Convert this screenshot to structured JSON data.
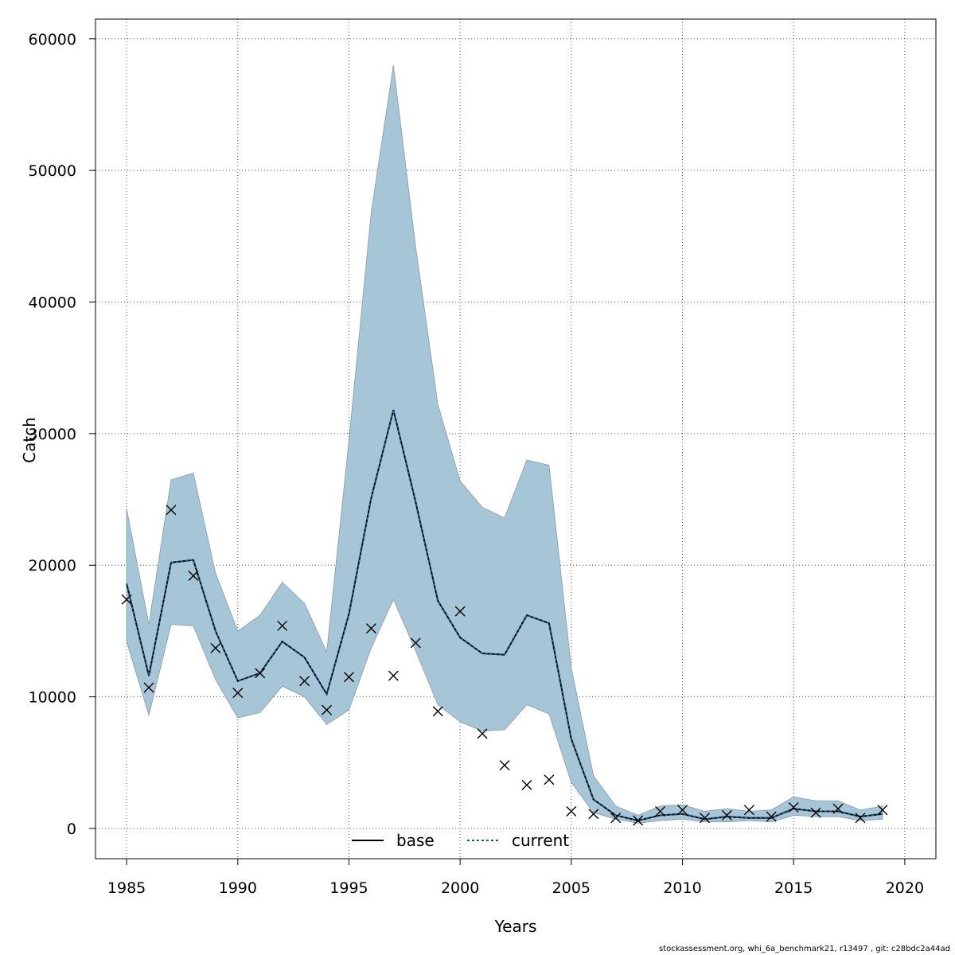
{
  "chart_data": {
    "type": "line",
    "xlabel": "Years",
    "ylabel": "Catch",
    "xlim": [
      1983.6,
      2021.4
    ],
    "ylim": [
      -2300,
      61500
    ],
    "x_ticks": [
      1985,
      1990,
      1995,
      2000,
      2005,
      2010,
      2015,
      2020
    ],
    "y_ticks": [
      0,
      10000,
      20000,
      30000,
      40000,
      50000,
      60000
    ],
    "x_tick_labels": [
      "1985",
      "1990",
      "1995",
      "2000",
      "2005",
      "2010",
      "2015",
      "2020"
    ],
    "y_tick_labels": [
      "0",
      "10000",
      "20000",
      "30000",
      "40000",
      "50000",
      "60000"
    ],
    "grid": true,
    "legend_position": "bottom-center",
    "years": [
      1985,
      1986,
      1987,
      1988,
      1989,
      1990,
      1991,
      1992,
      1993,
      1994,
      1995,
      1996,
      1997,
      1998,
      1999,
      2000,
      2001,
      2002,
      2003,
      2004,
      2005,
      2006,
      2007,
      2008,
      2009,
      2010,
      2011,
      2012,
      2013,
      2014,
      2015,
      2016,
      2017,
      2018,
      2019
    ],
    "band": {
      "color": "#a6c5d6",
      "upper": [
        24300,
        15500,
        26500,
        27000,
        19400,
        15000,
        16200,
        18700,
        17100,
        13400,
        29500,
        46800,
        58000,
        44200,
        32200,
        26400,
        24400,
        23600,
        28000,
        27600,
        12200,
        4000,
        1700,
        1000,
        1700,
        1800,
        1300,
        1500,
        1300,
        1400,
        2400,
        2100,
        2100,
        1400,
        1700
      ],
      "lower": [
        14200,
        8600,
        15500,
        15400,
        11300,
        8400,
        8800,
        10800,
        10000,
        7900,
        9000,
        13700,
        17400,
        13500,
        9400,
        8100,
        7400,
        7500,
        9400,
        8700,
        3500,
        1200,
        700,
        400,
        600,
        700,
        500,
        500,
        600,
        500,
        1000,
        900,
        900,
        600,
        700
      ]
    },
    "series": [
      {
        "name": "base",
        "color": "#000000",
        "dash": "none",
        "values": [
          18600,
          11600,
          20200,
          20400,
          15000,
          11200,
          11800,
          14200,
          13000,
          10200,
          16300,
          25100,
          31800,
          24800,
          17300,
          14500,
          13300,
          13200,
          16200,
          15600,
          6800,
          2200,
          1000,
          600,
          1000,
          1100,
          700,
          900,
          800,
          800,
          1500,
          1300,
          1300,
          900,
          1100
        ]
      },
      {
        "name": "current",
        "color": "#1f5a8c",
        "dash": "3,3",
        "values": [
          18600,
          11600,
          20200,
          20400,
          15000,
          11200,
          11800,
          14200,
          13000,
          10200,
          16300,
          25100,
          31800,
          24800,
          17300,
          14500,
          13300,
          13200,
          16200,
          15600,
          6800,
          2200,
          1000,
          600,
          1000,
          1100,
          700,
          900,
          800,
          800,
          1500,
          1300,
          1300,
          900,
          1100
        ]
      }
    ],
    "observed": {
      "marker": "x",
      "values": [
        17400,
        10700,
        24200,
        19200,
        13700,
        10300,
        11800,
        15400,
        11200,
        9000,
        11500,
        15200,
        11600,
        14100,
        8900,
        16500,
        7200,
        4800,
        3300,
        3700,
        1300,
        1100,
        800,
        600,
        1300,
        1400,
        800,
        1000,
        1400,
        900,
        1600,
        1200,
        1500,
        800,
        1400
      ]
    }
  },
  "footer_text": "stockassessment.org, whi_6a_benchmark21, r13497 , git: c28bdc2a44ad"
}
